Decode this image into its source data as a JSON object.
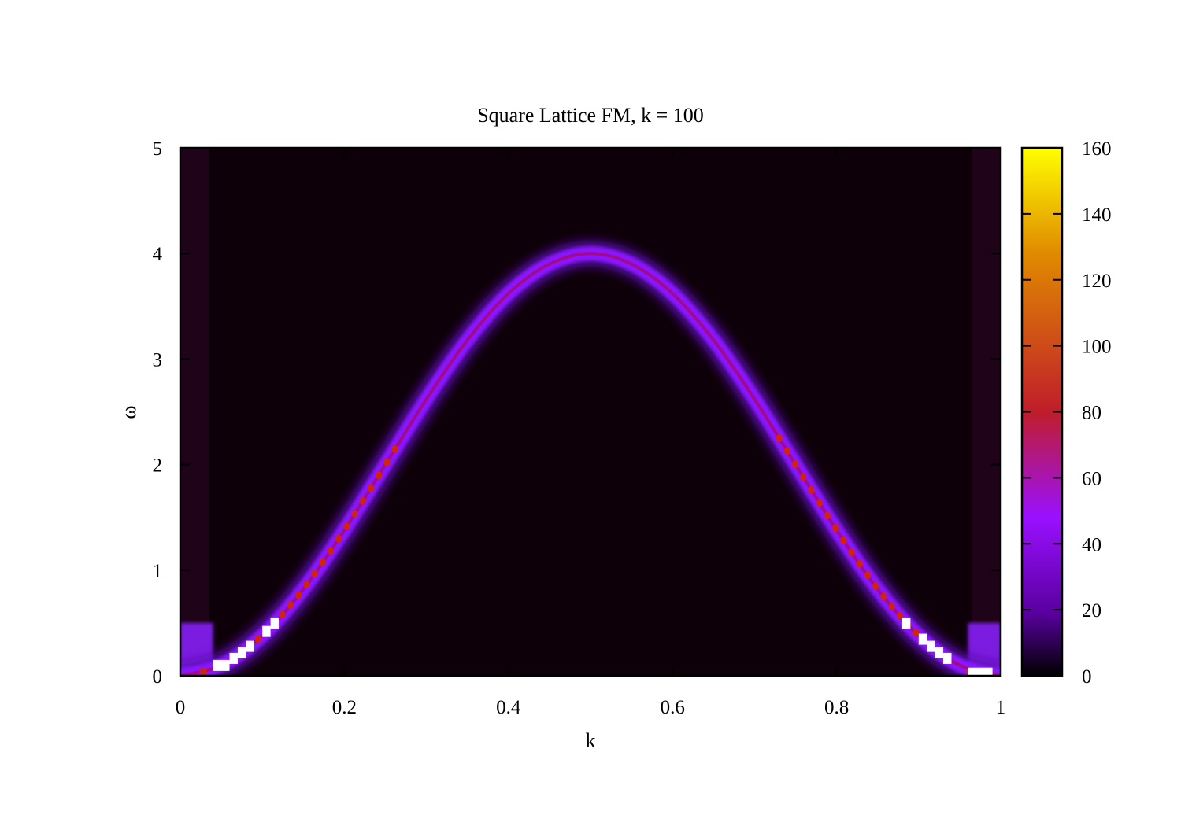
{
  "chart_data": {
    "type": "heatmap",
    "title": "Square Lattice FM, k = 100",
    "xlabel": "k",
    "ylabel": "ω",
    "xlim": [
      0,
      1
    ],
    "ylim": [
      0,
      5
    ],
    "x_ticks": [
      "0",
      "0.2",
      "0.4",
      "0.6",
      "0.8",
      "1"
    ],
    "y_ticks": [
      "0",
      "1",
      "2",
      "3",
      "4",
      "5"
    ],
    "colorbar": {
      "range": [
        0,
        160
      ],
      "ticks": [
        "0",
        "20",
        "40",
        "60",
        "80",
        "100",
        "120",
        "140",
        "160"
      ],
      "colors": [
        "#000000",
        "#5a00a0",
        "#9a10ff",
        "#c01d2a",
        "#e08a00",
        "#ffff00"
      ],
      "stops": [
        0,
        0.12,
        0.3,
        0.5,
        0.8,
        1
      ]
    },
    "ridge": {
      "description_function": "omega = 4 * sin^2(pi * k)",
      "peak_omega": 4.0,
      "peak_k": 0.5,
      "k": [
        0.0,
        0.05,
        0.1,
        0.15,
        0.2,
        0.25,
        0.3,
        0.35,
        0.4,
        0.45,
        0.5,
        0.55,
        0.6,
        0.65,
        0.7,
        0.75,
        0.8,
        0.85,
        0.9,
        0.95,
        1.0
      ],
      "omega": [
        0.0,
        0.1,
        0.38,
        0.82,
        1.38,
        2.0,
        2.62,
        3.18,
        3.62,
        3.9,
        4.0,
        3.9,
        3.62,
        3.18,
        2.62,
        2.0,
        1.38,
        0.82,
        0.38,
        0.1,
        0.0
      ]
    },
    "grid": false,
    "legend": "none"
  }
}
